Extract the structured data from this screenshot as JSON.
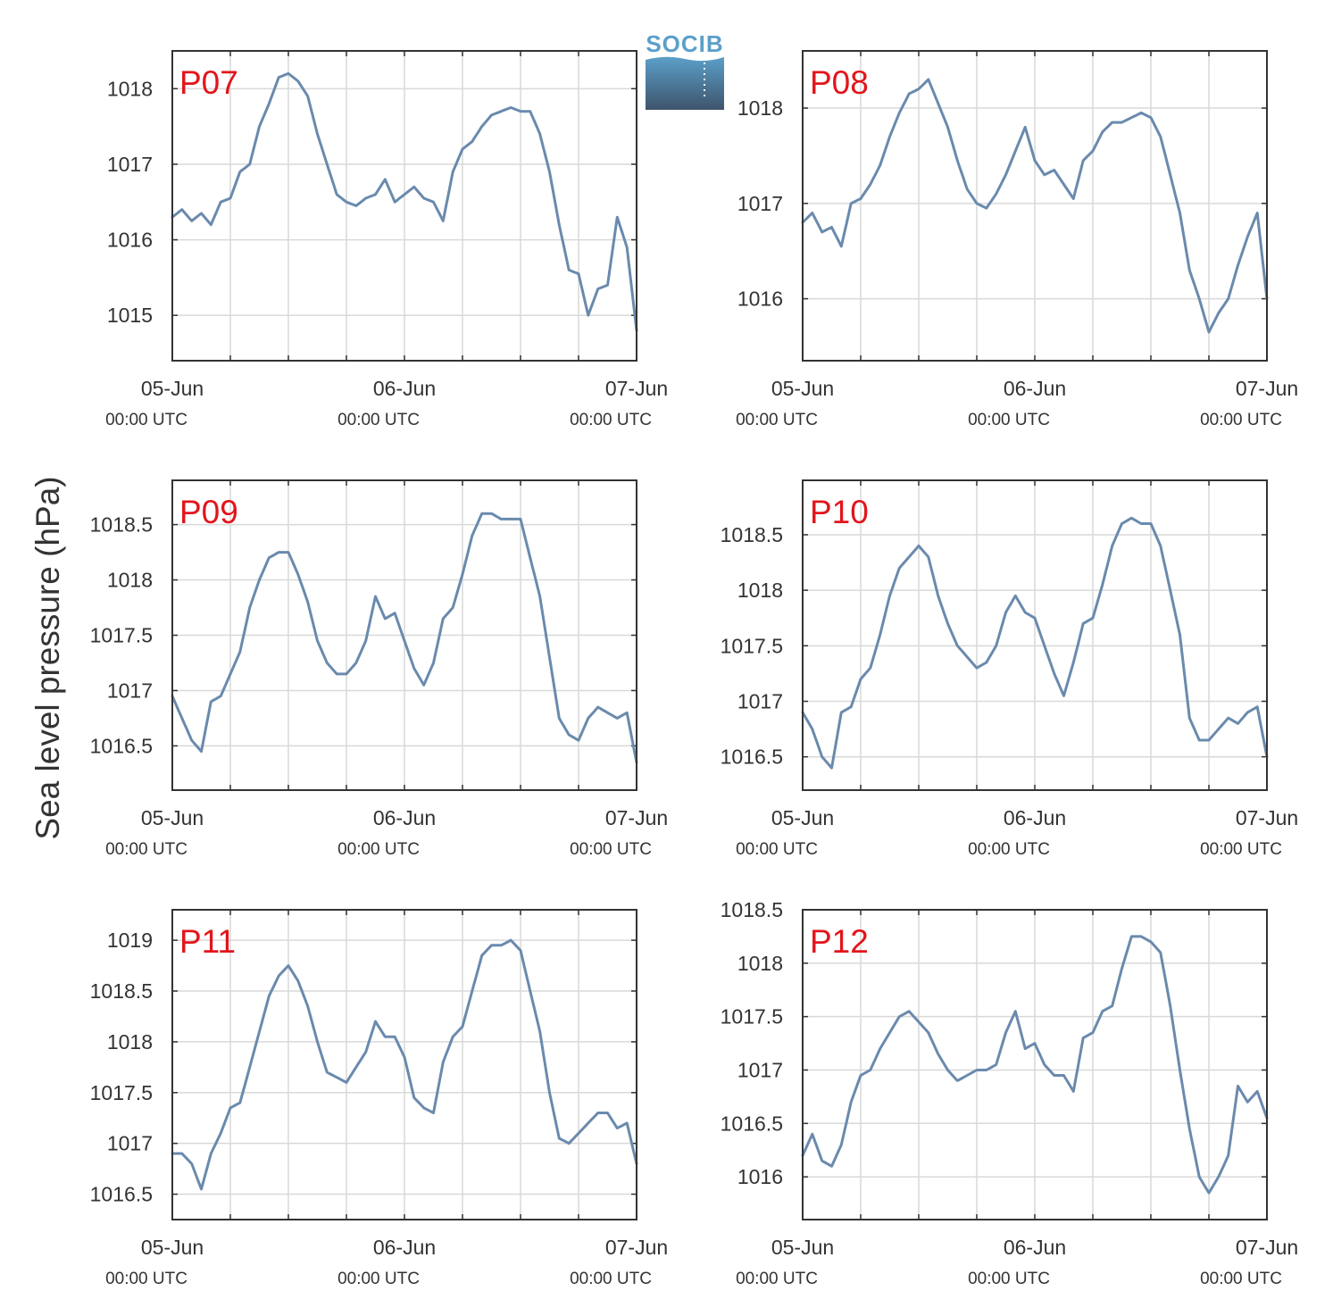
{
  "figure": {
    "ylabel": "Sea level pressure (hPa)",
    "logo_text": "SOCIB",
    "colors": {
      "line": "#6a8aad",
      "panel_label": "#e2151b",
      "grid": "#d9d9d9",
      "axes": "#333333",
      "logo_top": "#5b9fc9",
      "logo_bottom": "#3e546b"
    }
  },
  "chart_data": [
    {
      "type": "line",
      "title": "P07",
      "ylim": [
        1014.4,
        1018.5
      ],
      "yticks": [
        1015,
        1016,
        1017,
        1018
      ],
      "ytick_labels": [
        "1015",
        "1016",
        "1017",
        "1018"
      ],
      "x_range_hours": [
        0,
        48
      ],
      "x_ticks": [
        {
          "date": "05-Jun",
          "time": "00:00 UTC"
        },
        {
          "date": "06-Jun",
          "time": "00:00 UTC"
        },
        {
          "date": "07-Jun",
          "time": "00:00 UTC"
        }
      ],
      "x_grid_hours": [
        6,
        12,
        18,
        30,
        36,
        42
      ],
      "series": [
        {
          "x_hours": [
            0,
            1,
            2,
            3,
            4,
            5,
            6,
            7,
            8,
            9,
            10,
            11,
            12,
            13,
            14,
            15,
            16,
            17,
            18,
            19,
            20,
            21,
            22,
            23,
            24,
            25,
            26,
            27,
            28,
            29,
            30,
            31,
            32,
            33,
            34,
            35,
            36,
            37,
            38,
            39,
            40,
            41,
            42,
            43,
            44,
            45,
            46,
            47,
            48
          ],
          "values": [
            1016.3,
            1016.4,
            1016.25,
            1016.35,
            1016.2,
            1016.5,
            1016.55,
            1016.9,
            1017.0,
            1017.5,
            1017.8,
            1018.15,
            1018.2,
            1018.1,
            1017.9,
            1017.4,
            1017.0,
            1016.6,
            1016.5,
            1016.45,
            1016.55,
            1016.6,
            1016.8,
            1016.5,
            1016.6,
            1016.7,
            1016.55,
            1016.5,
            1016.25,
            1016.9,
            1017.2,
            1017.3,
            1017.5,
            1017.65,
            1017.7,
            1017.75,
            1017.7,
            1017.7,
            1017.4,
            1016.9,
            1016.2,
            1015.6,
            1015.55,
            1015.0,
            1015.35,
            1015.4,
            1016.3,
            1015.9,
            1014.8
          ]
        }
      ]
    },
    {
      "type": "line",
      "title": "P08",
      "ylim": [
        1015.35,
        1018.6
      ],
      "yticks": [
        1016,
        1017,
        1018
      ],
      "ytick_labels": [
        "1016",
        "1017",
        "1018"
      ],
      "x_range_hours": [
        0,
        48
      ],
      "x_ticks": [
        {
          "date": "05-Jun",
          "time": "00:00 UTC"
        },
        {
          "date": "06-Jun",
          "time": "00:00 UTC"
        },
        {
          "date": "07-Jun",
          "time": "00:00 UTC"
        }
      ],
      "x_grid_hours": [
        6,
        12,
        18,
        30,
        36,
        42
      ],
      "series": [
        {
          "x_hours": [
            0,
            1,
            2,
            3,
            4,
            5,
            6,
            7,
            8,
            9,
            10,
            11,
            12,
            13,
            14,
            15,
            16,
            17,
            18,
            19,
            20,
            21,
            22,
            23,
            24,
            25,
            26,
            27,
            28,
            29,
            30,
            31,
            32,
            33,
            34,
            35,
            36,
            37,
            38,
            39,
            40,
            41,
            42,
            43,
            44,
            45,
            46,
            47,
            48
          ],
          "values": [
            1016.8,
            1016.9,
            1016.7,
            1016.75,
            1016.55,
            1017.0,
            1017.05,
            1017.2,
            1017.4,
            1017.7,
            1017.95,
            1018.15,
            1018.2,
            1018.3,
            1018.05,
            1017.8,
            1017.45,
            1017.15,
            1017.0,
            1016.95,
            1017.1,
            1017.3,
            1017.55,
            1017.8,
            1017.45,
            1017.3,
            1017.35,
            1017.2,
            1017.05,
            1017.45,
            1017.55,
            1017.75,
            1017.85,
            1017.85,
            1017.9,
            1017.95,
            1017.9,
            1017.7,
            1017.3,
            1016.9,
            1016.3,
            1016.0,
            1015.65,
            1015.85,
            1016.0,
            1016.35,
            1016.65,
            1016.9,
            1016.0
          ]
        }
      ]
    },
    {
      "type": "line",
      "title": "P09",
      "ylim": [
        1016.1,
        1018.9
      ],
      "yticks": [
        1016.5,
        1017,
        1017.5,
        1018,
        1018.5
      ],
      "ytick_labels": [
        "1016.5",
        "1017",
        "1017.5",
        "1018",
        "1018.5"
      ],
      "x_range_hours": [
        0,
        48
      ],
      "x_ticks": [
        {
          "date": "05-Jun",
          "time": "00:00 UTC"
        },
        {
          "date": "06-Jun",
          "time": "00:00 UTC"
        },
        {
          "date": "07-Jun",
          "time": "00:00 UTC"
        }
      ],
      "x_grid_hours": [
        6,
        12,
        18,
        30,
        36,
        42
      ],
      "series": [
        {
          "x_hours": [
            0,
            1,
            2,
            3,
            4,
            5,
            6,
            7,
            8,
            9,
            10,
            11,
            12,
            13,
            14,
            15,
            16,
            17,
            18,
            19,
            20,
            21,
            22,
            23,
            24,
            25,
            26,
            27,
            28,
            29,
            30,
            31,
            32,
            33,
            34,
            35,
            36,
            37,
            38,
            39,
            40,
            41,
            42,
            43,
            44,
            45,
            46,
            47,
            48
          ],
          "values": [
            1016.95,
            1016.75,
            1016.55,
            1016.45,
            1016.9,
            1016.95,
            1017.15,
            1017.35,
            1017.75,
            1018.0,
            1018.2,
            1018.25,
            1018.25,
            1018.05,
            1017.8,
            1017.45,
            1017.25,
            1017.15,
            1017.15,
            1017.25,
            1017.45,
            1017.85,
            1017.65,
            1017.7,
            1017.45,
            1017.2,
            1017.05,
            1017.25,
            1017.65,
            1017.75,
            1018.05,
            1018.4,
            1018.6,
            1018.6,
            1018.55,
            1018.55,
            1018.55,
            1018.2,
            1017.85,
            1017.3,
            1016.75,
            1016.6,
            1016.55,
            1016.75,
            1016.85,
            1016.8,
            1016.75,
            1016.8,
            1016.35
          ]
        }
      ]
    },
    {
      "type": "line",
      "title": "P10",
      "ylim": [
        1016.2,
        1018.99
      ],
      "yticks": [
        1016.5,
        1017,
        1017.5,
        1018,
        1018.5
      ],
      "ytick_labels": [
        "1016.5",
        "1017",
        "1017.5",
        "1018",
        "1018.5"
      ],
      "x_range_hours": [
        0,
        48
      ],
      "x_ticks": [
        {
          "date": "05-Jun",
          "time": "00:00 UTC"
        },
        {
          "date": "06-Jun",
          "time": "00:00 UTC"
        },
        {
          "date": "07-Jun",
          "time": "00:00 UTC"
        }
      ],
      "x_grid_hours": [
        6,
        12,
        18,
        30,
        36,
        42
      ],
      "series": [
        {
          "x_hours": [
            0,
            1,
            2,
            3,
            4,
            5,
            6,
            7,
            8,
            9,
            10,
            11,
            12,
            13,
            14,
            15,
            16,
            17,
            18,
            19,
            20,
            21,
            22,
            23,
            24,
            25,
            26,
            27,
            28,
            29,
            30,
            31,
            32,
            33,
            34,
            35,
            36,
            37,
            38,
            39,
            40,
            41,
            42,
            43,
            44,
            45,
            46,
            47,
            48
          ],
          "values": [
            1016.9,
            1016.75,
            1016.5,
            1016.4,
            1016.9,
            1016.95,
            1017.2,
            1017.3,
            1017.6,
            1017.95,
            1018.2,
            1018.3,
            1018.4,
            1018.3,
            1017.95,
            1017.7,
            1017.5,
            1017.4,
            1017.3,
            1017.35,
            1017.5,
            1017.8,
            1017.95,
            1017.8,
            1017.75,
            1017.5,
            1017.25,
            1017.05,
            1017.35,
            1017.7,
            1017.75,
            1018.05,
            1018.4,
            1018.6,
            1018.65,
            1018.6,
            1018.6,
            1018.4,
            1018.0,
            1017.6,
            1016.85,
            1016.65,
            1016.65,
            1016.75,
            1016.85,
            1016.8,
            1016.9,
            1016.95,
            1016.5
          ]
        }
      ]
    },
    {
      "type": "line",
      "title": "P11",
      "ylim": [
        1016.25,
        1019.3
      ],
      "yticks": [
        1016.5,
        1017,
        1017.5,
        1018,
        1018.5,
        1019
      ],
      "ytick_labels": [
        "1016.5",
        "1017",
        "1017.5",
        "1018",
        "1018.5",
        "1019"
      ],
      "x_range_hours": [
        0,
        48
      ],
      "x_ticks": [
        {
          "date": "05-Jun",
          "time": "00:00 UTC"
        },
        {
          "date": "06-Jun",
          "time": "00:00 UTC"
        },
        {
          "date": "07-Jun",
          "time": "00:00 UTC"
        }
      ],
      "x_grid_hours": [
        6,
        12,
        18,
        30,
        36,
        42
      ],
      "series": [
        {
          "x_hours": [
            0,
            1,
            2,
            3,
            4,
            5,
            6,
            7,
            8,
            9,
            10,
            11,
            12,
            13,
            14,
            15,
            16,
            17,
            18,
            19,
            20,
            21,
            22,
            23,
            24,
            25,
            26,
            27,
            28,
            29,
            30,
            31,
            32,
            33,
            34,
            35,
            36,
            37,
            38,
            39,
            40,
            41,
            42,
            43,
            44,
            45,
            46,
            47,
            48
          ],
          "values": [
            1016.9,
            1016.9,
            1016.8,
            1016.55,
            1016.9,
            1017.1,
            1017.35,
            1017.4,
            1017.75,
            1018.1,
            1018.45,
            1018.65,
            1018.75,
            1018.6,
            1018.35,
            1018.0,
            1017.7,
            1017.65,
            1017.6,
            1017.75,
            1017.9,
            1018.2,
            1018.05,
            1018.05,
            1017.85,
            1017.45,
            1017.35,
            1017.3,
            1017.8,
            1018.05,
            1018.15,
            1018.5,
            1018.85,
            1018.95,
            1018.95,
            1019.0,
            1018.9,
            1018.5,
            1018.1,
            1017.5,
            1017.05,
            1017.0,
            1017.1,
            1017.2,
            1017.3,
            1017.3,
            1017.15,
            1017.2,
            1016.8
          ]
        }
      ]
    },
    {
      "type": "line",
      "title": "P12",
      "ylim": [
        1015.6,
        1018.5
      ],
      "yticks": [
        1016,
        1016.5,
        1017,
        1017.5,
        1018,
        1018.5
      ],
      "ytick_labels": [
        "1016",
        "1016.5",
        "1017",
        "1017.5",
        "1018",
        "1018.5"
      ],
      "x_range_hours": [
        0,
        48
      ],
      "x_ticks": [
        {
          "date": "05-Jun",
          "time": "00:00 UTC"
        },
        {
          "date": "06-Jun",
          "time": "00:00 UTC"
        },
        {
          "date": "07-Jun",
          "time": "00:00 UTC"
        }
      ],
      "x_grid_hours": [
        6,
        12,
        18,
        30,
        36,
        42
      ],
      "series": [
        {
          "x_hours": [
            0,
            1,
            2,
            3,
            4,
            5,
            6,
            7,
            8,
            9,
            10,
            11,
            12,
            13,
            14,
            15,
            16,
            17,
            18,
            19,
            20,
            21,
            22,
            23,
            24,
            25,
            26,
            27,
            28,
            29,
            30,
            31,
            32,
            33,
            34,
            35,
            36,
            37,
            38,
            39,
            40,
            41,
            42,
            43,
            44,
            45,
            46,
            47,
            48
          ],
          "values": [
            1016.2,
            1016.4,
            1016.15,
            1016.1,
            1016.3,
            1016.7,
            1016.95,
            1017.0,
            1017.2,
            1017.35,
            1017.5,
            1017.55,
            1017.45,
            1017.35,
            1017.15,
            1017.0,
            1016.9,
            1016.95,
            1017.0,
            1017.0,
            1017.05,
            1017.35,
            1017.55,
            1017.2,
            1017.25,
            1017.05,
            1016.95,
            1016.95,
            1016.8,
            1017.3,
            1017.35,
            1017.55,
            1017.6,
            1017.95,
            1018.25,
            1018.25,
            1018.2,
            1018.1,
            1017.6,
            1017.0,
            1016.45,
            1016.0,
            1015.85,
            1016.0,
            1016.2,
            1016.85,
            1016.7,
            1016.8,
            1016.55
          ]
        }
      ]
    }
  ]
}
